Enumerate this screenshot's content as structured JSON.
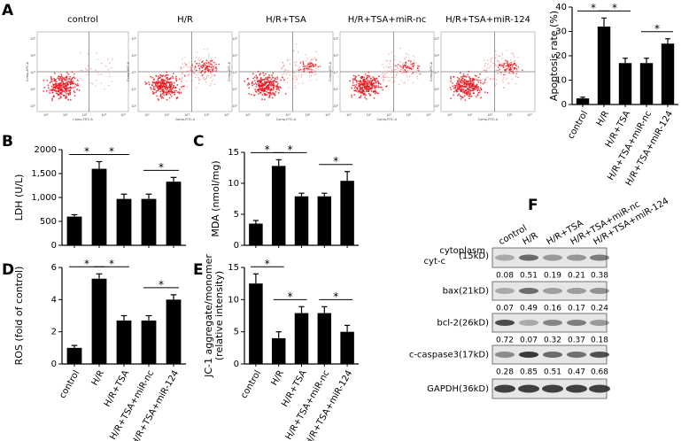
{
  "flow_panel": {
    "panel": "A",
    "titles": [
      "control",
      "H/R",
      "H/R+TSA",
      "H/R+TSA+miR-nc",
      "H/R+TSA+miR-124"
    ],
    "x_label": "Comp-FITC-A",
    "y_label": "Comp-APC-A",
    "axis_ticks": [
      "10⁰",
      "10²",
      "10³",
      "10⁴",
      "10⁵"
    ]
  },
  "chart_data": [
    {
      "type": "bar",
      "ylabel": [
        "Apoptosis rate (%)"
      ],
      "categories": [
        "control",
        "H/R",
        "H/R+TSA",
        "H/R+TSA+miR-nc",
        "H/R+TSA+miR-124"
      ],
      "values": [
        2.5,
        32,
        17,
        17,
        25
      ],
      "errors": [
        0.5,
        3.5,
        2,
        2,
        2
      ],
      "ylim": [
        0,
        40
      ],
      "yticks": [
        0,
        10,
        20,
        30,
        40
      ],
      "color": "#000000",
      "significance_labels": [
        "*",
        "*",
        "*"
      ]
    },
    {
      "type": "bar",
      "panel": "B",
      "ylabel": [
        "LDH (U/L)"
      ],
      "values": [
        600,
        1600,
        970,
        970,
        1330
      ],
      "errors": [
        40,
        150,
        100,
        100,
        90
      ],
      "ylim": [
        0,
        2000
      ],
      "yticks": [
        0,
        500,
        {
          "value": 1000,
          "label": "1,000"
        },
        {
          "value": 1500,
          "label": "1,500"
        },
        2000
      ],
      "color": "#000000",
      "significance_labels": [
        "*",
        "*",
        "*"
      ]
    },
    {
      "type": "bar",
      "panel": "C",
      "ylabel": [
        "MDA (nmol/mg)"
      ],
      "values": [
        3.5,
        12.8,
        7.9,
        7.9,
        10.4
      ],
      "errors": [
        0.5,
        1,
        0.5,
        0.5,
        1.5
      ],
      "ylim": [
        0,
        15
      ],
      "yticks": [
        0,
        5,
        10,
        15
      ],
      "color": "#000000",
      "significance_labels": [
        "*",
        "*",
        "*"
      ]
    },
    {
      "type": "bar",
      "panel": "D",
      "ylabel": [
        "ROS (fold of control)"
      ],
      "categories": [
        "control",
        "H/R",
        "H/R+TSA",
        "H/R+TSA+miR-nc",
        "H/R+TSA+miR-124"
      ],
      "values": [
        1.0,
        5.3,
        2.7,
        2.7,
        4.0
      ],
      "errors": [
        0.15,
        0.3,
        0.3,
        0.3,
        0.3
      ],
      "ylim": [
        0,
        6
      ],
      "yticks": [
        0,
        2,
        4,
        6
      ],
      "color": "#000000",
      "significance_labels": [
        "*",
        "*",
        "*"
      ]
    },
    {
      "type": "bar",
      "panel": "E",
      "ylabel": [
        "JC-1 aggregate/monomer",
        "(relative intensity)"
      ],
      "categories": [
        "control",
        "H/R",
        "H/R+TSA",
        "H/R+TSA+miR-nc",
        "H/R+TSA+miR-124"
      ],
      "values": [
        12.5,
        4,
        7.9,
        7.9,
        5
      ],
      "errors": [
        1.5,
        1,
        1,
        1,
        1
      ],
      "ylim": [
        0,
        15
      ],
      "yticks": [
        0,
        5,
        10,
        15
      ],
      "color": "#000000",
      "significance_labels": [
        "*",
        "*",
        "*"
      ]
    }
  ],
  "blot_panel": {
    "panel": "F",
    "columns": [
      "control",
      "H/R",
      "H/R+TSA",
      "H/R+TSA+miR-nc",
      "H/R+TSA+miR-124"
    ],
    "rows": [
      {
        "label": [
          "cytoplasm",
          "cyt-c",
          "(15kD)"
        ],
        "values": [
          0.08,
          0.51,
          0.19,
          0.21,
          0.38
        ]
      },
      {
        "label": [
          "bax(21kD)"
        ],
        "values": [
          0.07,
          0.49,
          0.16,
          0.17,
          0.24
        ]
      },
      {
        "label": [
          "bcl-2(26kD)"
        ],
        "values": [
          0.72,
          0.07,
          0.32,
          0.37,
          0.18
        ]
      },
      {
        "label": [
          "c-caspase3(17kD)"
        ],
        "values": [
          0.28,
          0.85,
          0.51,
          0.47,
          0.68
        ]
      },
      {
        "label": [
          "GAPDH(36kD)"
        ]
      }
    ]
  }
}
